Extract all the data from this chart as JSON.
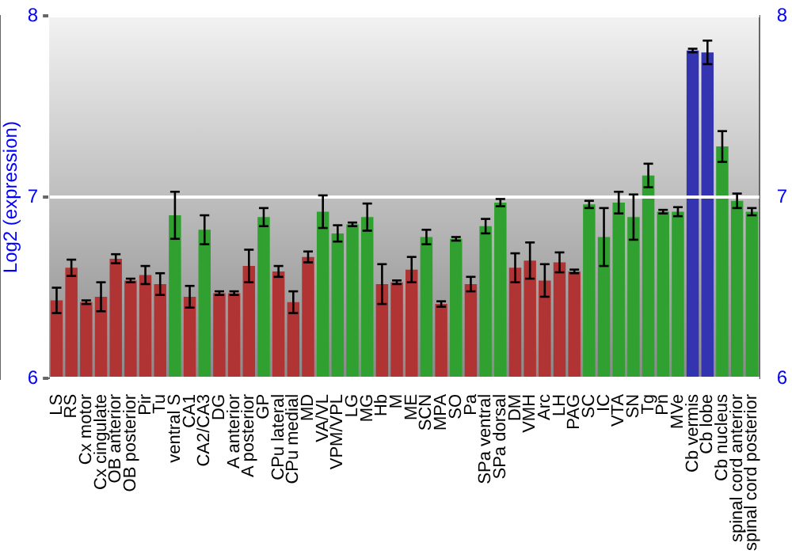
{
  "chart_data": {
    "type": "bar",
    "ylabel": "Log2 (expression)",
    "categories": [
      "LS",
      "RS",
      "Cx motor",
      "Cx cingulate",
      "OB anterior",
      "OB posterior",
      "Pir",
      "Tu",
      "ventral S",
      "CA1",
      "CA2/CA3",
      "DG",
      "A anterior",
      "A posterior",
      "GP",
      "CPu lateral",
      "CPu medial",
      "MD",
      "VA/VL",
      "VPM/VPL",
      "LG",
      "MG",
      "Hb",
      "M",
      "ME",
      "SCN",
      "MPA",
      "SO",
      "Pa",
      "SPa ventral",
      "SPa dorsal",
      "DM",
      "VMH",
      "Arc",
      "LH",
      "PAG",
      "SC",
      "IC",
      "VTA",
      "SN",
      "Tg",
      "Pn",
      "MVe",
      "Cb vermis",
      "Cb lobe",
      "Cb nucleus",
      "spinal cord anterior",
      "spinal cord posterior"
    ],
    "values": [
      6.43,
      6.61,
      6.42,
      6.45,
      6.66,
      6.54,
      6.57,
      6.52,
      6.9,
      6.45,
      6.82,
      6.47,
      6.47,
      6.62,
      6.89,
      6.59,
      6.42,
      6.67,
      6.92,
      6.8,
      6.85,
      6.89,
      6.52,
      6.53,
      6.6,
      6.78,
      6.41,
      6.77,
      6.52,
      6.84,
      6.97,
      6.61,
      6.65,
      6.54,
      6.64,
      6.59,
      6.96,
      6.78,
      6.97,
      6.89,
      7.12,
      6.92,
      6.92,
      7.81,
      7.8,
      7.28,
      6.98,
      6.92
    ],
    "errors": [
      0.07,
      0.045,
      0.01,
      0.08,
      0.025,
      0.01,
      0.05,
      0.06,
      0.13,
      0.06,
      0.08,
      0.01,
      0.01,
      0.09,
      0.05,
      0.03,
      0.06,
      0.03,
      0.09,
      0.045,
      0.01,
      0.075,
      0.11,
      0.01,
      0.07,
      0.04,
      0.015,
      0.01,
      0.04,
      0.04,
      0.02,
      0.08,
      0.1,
      0.09,
      0.055,
      0.01,
      0.02,
      0.16,
      0.06,
      0.125,
      0.065,
      0.01,
      0.025,
      0.01,
      0.065,
      0.085,
      0.04,
      0.02
    ],
    "colors": [
      "#b03434",
      "#b03434",
      "#b03434",
      "#b03434",
      "#b03434",
      "#b03434",
      "#b03434",
      "#b03434",
      "#30a030",
      "#b03434",
      "#30a030",
      "#b03434",
      "#b03434",
      "#b03434",
      "#30a030",
      "#b03434",
      "#b03434",
      "#b03434",
      "#30a030",
      "#30a030",
      "#30a030",
      "#30a030",
      "#b03434",
      "#b03434",
      "#b03434",
      "#30a030",
      "#b03434",
      "#30a030",
      "#b03434",
      "#30a030",
      "#30a030",
      "#b03434",
      "#b03434",
      "#b03434",
      "#b03434",
      "#b03434",
      "#30a030",
      "#30a030",
      "#30a030",
      "#30a030",
      "#30a030",
      "#30a030",
      "#30a030",
      "#3434b0",
      "#3434b0",
      "#30a030",
      "#30a030",
      "#30a030"
    ],
    "ylim": [
      6,
      8
    ],
    "yticks": [
      6,
      7,
      8
    ],
    "y2lim": [
      6,
      8
    ],
    "y2ticks": [
      6,
      7,
      8
    ],
    "grid": "y"
  }
}
